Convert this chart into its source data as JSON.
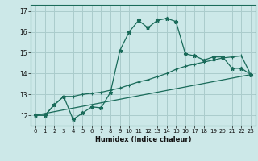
{
  "xlabel": "Humidex (Indice chaleur)",
  "ylabel": "",
  "background_color": "#cce8e8",
  "grid_color": "#aacccc",
  "line_color": "#1a6b5a",
  "ylim": [
    11.5,
    17.3
  ],
  "xlim": [
    -0.5,
    23.5
  ],
  "xticks": [
    0,
    1,
    2,
    3,
    4,
    5,
    6,
    7,
    8,
    9,
    10,
    11,
    12,
    13,
    14,
    15,
    16,
    17,
    18,
    19,
    20,
    21,
    22,
    23
  ],
  "yticks": [
    12,
    13,
    14,
    15,
    16,
    17
  ],
  "series1_x": [
    0,
    1,
    2,
    3,
    4,
    5,
    6,
    7,
    8,
    9,
    10,
    11,
    12,
    13,
    14,
    15,
    16,
    17,
    18,
    19,
    20,
    21,
    22,
    23
  ],
  "series1_y": [
    12.0,
    12.0,
    12.5,
    12.9,
    11.8,
    12.1,
    12.4,
    12.35,
    13.1,
    15.1,
    16.0,
    16.55,
    16.2,
    16.55,
    16.65,
    16.5,
    14.95,
    14.85,
    14.65,
    14.8,
    14.8,
    14.25,
    14.25,
    13.95
  ],
  "series2_x": [
    0,
    1,
    2,
    3,
    4,
    5,
    6,
    7,
    8,
    9,
    10,
    11,
    12,
    13,
    14,
    15,
    16,
    17,
    18,
    19,
    20,
    21,
    22,
    23
  ],
  "series2_y": [
    12.0,
    12.0,
    12.5,
    12.9,
    12.9,
    13.0,
    13.05,
    13.1,
    13.2,
    13.3,
    13.45,
    13.6,
    13.7,
    13.85,
    14.0,
    14.2,
    14.35,
    14.45,
    14.55,
    14.65,
    14.75,
    14.8,
    14.85,
    13.95
  ],
  "series3_x": [
    0,
    23
  ],
  "series3_y": [
    12.0,
    13.95
  ]
}
